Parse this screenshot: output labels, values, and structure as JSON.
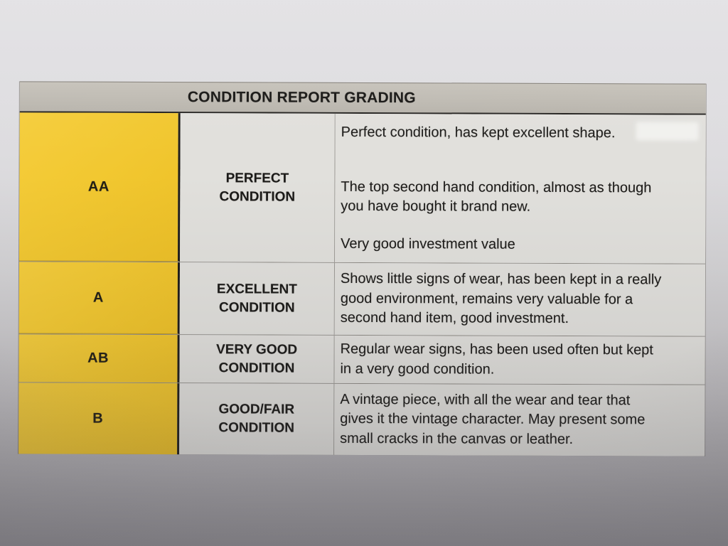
{
  "document": {
    "title": "CONDITION REPORT GRADING",
    "grades": [
      {
        "grade": "AA",
        "condition_lines": [
          "PERFECT",
          "CONDITION"
        ],
        "paragraphs": [
          [
            "Perfect condition, has kept excellent shape."
          ],
          [
            "The top second hand condition, almost as though",
            "you have bought it brand new."
          ],
          [
            "Very good investment value"
          ]
        ]
      },
      {
        "grade": "A",
        "condition_lines": [
          "EXCELLENT",
          "CONDITION"
        ],
        "paragraphs": [
          [
            "Shows little signs of wear, has been kept in a really",
            "good environment, remains very valuable for a",
            "second hand item, good investment."
          ]
        ]
      },
      {
        "grade": "AB",
        "condition_lines": [
          "VERY GOOD",
          "CONDITION"
        ],
        "paragraphs": [
          [
            "Regular wear signs, has been used often but kept",
            "in a very good condition."
          ]
        ]
      },
      {
        "grade": "B",
        "condition_lines": [
          "GOOD/FAIR",
          "CONDITION"
        ],
        "paragraphs": [
          [
            "A vintage piece, with all the wear and tear that",
            "gives it the vintage character. May present some",
            "small cracks in the canvas or leather."
          ]
        ]
      }
    ]
  },
  "colors": {
    "grade_cell_yellow": "#F2C831",
    "header_gray": "#BFBBB3",
    "cell_background": "#E1E0DC",
    "text": "#1B1A18"
  }
}
